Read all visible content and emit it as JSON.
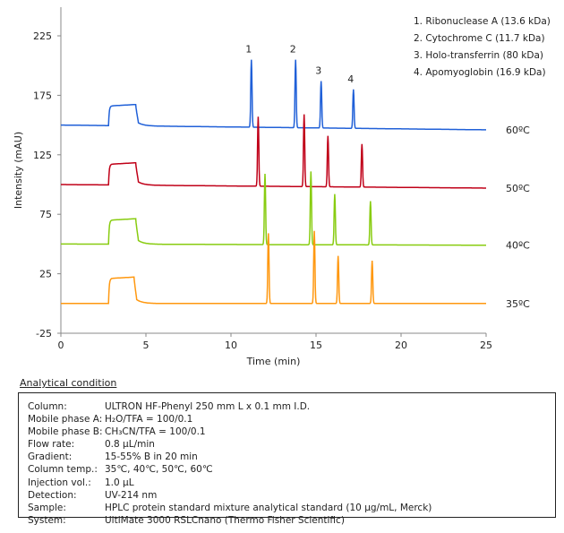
{
  "chart_data": {
    "type": "line",
    "xlabel": "Time (min)",
    "ylabel": "Intensity (mAU)",
    "xlim": [
      0,
      25
    ],
    "ylim": [
      -25,
      250
    ],
    "xticks": [
      0,
      5,
      10,
      15,
      20,
      25
    ],
    "yticks": [
      -25,
      25,
      75,
      125,
      175,
      225
    ],
    "grid": false,
    "legend_position": "top-right",
    "legend": [
      "1. Ribonuclease A (13.6 kDa)",
      "2. Cytochrome C (11.7 kDa)",
      "3. Holo-transferrin (80 kDa)",
      "4. Apomyoglobin (16.9 kDa)"
    ],
    "peak_labels": [
      {
        "text": "1",
        "x": 11.2,
        "y": 205
      },
      {
        "text": "2",
        "x": 13.8,
        "y": 205
      },
      {
        "text": "3",
        "x": 15.3,
        "y": 187
      },
      {
        "text": "4",
        "x": 17.2,
        "y": 180
      }
    ],
    "series": [
      {
        "name": "60ºC",
        "color": "#2060d8",
        "baseline_start": 150,
        "baseline_end": 146,
        "plateau": [
          2.8,
          4.4,
          166
        ],
        "peaks": [
          {
            "x": 11.2,
            "y": 205
          },
          {
            "x": 13.8,
            "y": 205
          },
          {
            "x": 15.3,
            "y": 187
          },
          {
            "x": 17.2,
            "y": 180
          }
        ]
      },
      {
        "name": "50ºC",
        "color": "#c00018",
        "baseline_start": 100,
        "baseline_end": 97,
        "plateau": [
          2.8,
          4.4,
          117
        ],
        "peaks": [
          {
            "x": 11.6,
            "y": 157
          },
          {
            "x": 14.3,
            "y": 159
          },
          {
            "x": 15.7,
            "y": 141
          },
          {
            "x": 17.7,
            "y": 134
          }
        ]
      },
      {
        "name": "40ºC",
        "color": "#88cc10",
        "baseline_start": 50,
        "baseline_end": 49,
        "plateau": [
          2.8,
          4.4,
          70
        ],
        "peaks": [
          {
            "x": 12.0,
            "y": 109
          },
          {
            "x": 14.7,
            "y": 111
          },
          {
            "x": 16.1,
            "y": 92
          },
          {
            "x": 18.2,
            "y": 86
          }
        ]
      },
      {
        "name": "35ºC",
        "color": "#ff9810",
        "baseline_start": 0,
        "baseline_end": 0,
        "plateau": [
          2.8,
          4.3,
          21
        ],
        "peaks": [
          {
            "x": 12.2,
            "y": 59
          },
          {
            "x": 14.9,
            "y": 61
          },
          {
            "x": 16.3,
            "y": 40
          },
          {
            "x": 18.3,
            "y": 36
          }
        ]
      }
    ]
  },
  "conditions": {
    "title": "Analytical condition",
    "rows": [
      {
        "key": "Column:",
        "value": "ULTRON HF-Phenyl  250 mm L x 0.1 mm I.D."
      },
      {
        "key": "Mobile phase A:",
        "value": "H₂O/TFA = 100/0.1"
      },
      {
        "key": "Mobile phase B:",
        "value": "CH₃CN/TFA = 100/0.1"
      },
      {
        "key": "Flow rate:",
        "value": "0.8 μL/min"
      },
      {
        "key": "Gradient:",
        "value": "15-55% B in 20 min"
      },
      {
        "key": "Column temp.:",
        "value": "35℃, 40℃, 50℃, 60℃"
      },
      {
        "key": "Injection vol.:",
        "value": "1.0 μL"
      },
      {
        "key": "Detection:",
        "value": "UV-214 nm"
      },
      {
        "key": "Sample:",
        "value": "HPLC protein standard mixture analytical standard (10 μg/mL, Merck)"
      },
      {
        "key": "System:",
        "value": "UltiMate 3000 RSLCnano (Thermo Fisher Scientific)"
      }
    ]
  }
}
